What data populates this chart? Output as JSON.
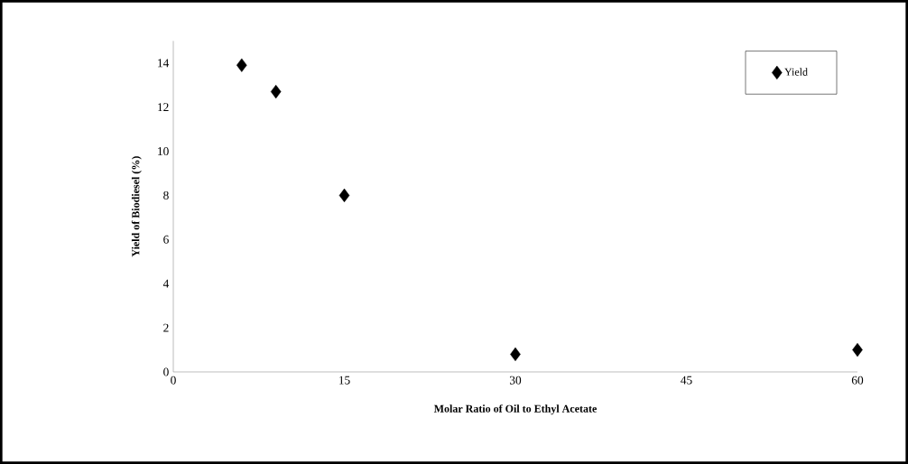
{
  "chart_data": {
    "type": "scatter",
    "xlabel": "Molar Ratio of Oil to Ethyl Acetate",
    "ylabel": "Yield of Biodiesel (%)",
    "x": [
      6,
      9,
      15,
      30,
      60
    ],
    "series": [
      {
        "name": "Yield",
        "color": "#000000",
        "values": [
          13.9,
          12.7,
          8.0,
          0.8,
          1.0
        ]
      }
    ],
    "xlim": [
      0,
      60
    ],
    "ylim": [
      0,
      15
    ],
    "xticks": [
      0,
      15,
      30,
      45,
      60
    ],
    "yticks": [
      0,
      2,
      4,
      6,
      8,
      10,
      12,
      14
    ],
    "marker": "diamond",
    "legend": "top right",
    "grid": false
  }
}
